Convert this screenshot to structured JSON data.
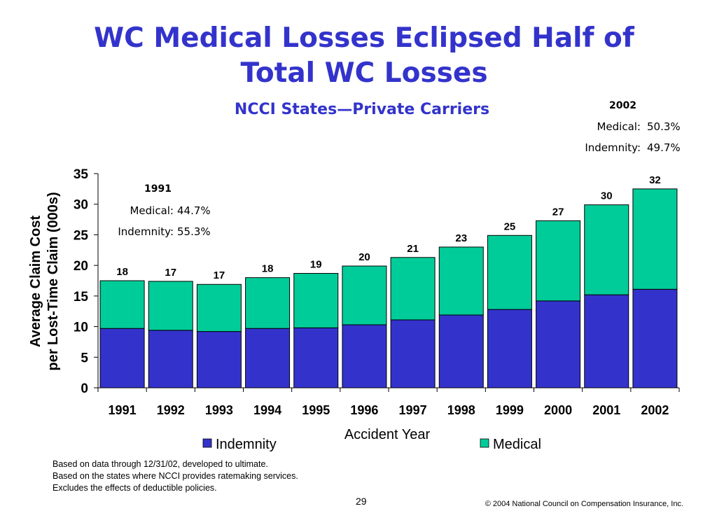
{
  "slide": {
    "title_line1": "WC Medical Losses Eclipsed Half of",
    "title_line2": "Total WC Losses",
    "subtitle": "NCCI States—Private Carriers",
    "page_number": "29",
    "copyright": "© 2004 National Council on Compensation Insurance, Inc.",
    "footnotes": [
      "Based on data through 12/31/02, developed to ultimate.",
      "Based on the states where NCCI provides ratemaking services.",
      "Excludes the effects of deductible policies."
    ]
  },
  "callouts": {
    "y1991": {
      "year": "1991",
      "medical_label": "Medical:",
      "medical_value": "44.7%",
      "indemnity_label": "Indemnity:",
      "indemnity_value": "55.3%"
    },
    "y2002": {
      "year": "2002",
      "medical_label": "Medical:",
      "medical_value": "50.3%",
      "indemnity_label": "Indemnity:",
      "indemnity_value": "49.7%"
    }
  },
  "chart_data": {
    "type": "bar",
    "stacked": true,
    "categories": [
      "1991",
      "1992",
      "1993",
      "1994",
      "1995",
      "1996",
      "1997",
      "1998",
      "1999",
      "2000",
      "2001",
      "2002"
    ],
    "series": [
      {
        "name": "Indemnity",
        "color": "#3333cc",
        "values": [
          9.7,
          9.4,
          9.2,
          9.7,
          9.8,
          10.3,
          11.1,
          11.9,
          12.8,
          14.2,
          15.2,
          16.1
        ]
      },
      {
        "name": "Medical",
        "color": "#00cc99",
        "values": [
          7.8,
          8.0,
          7.7,
          8.3,
          8.9,
          9.6,
          10.2,
          11.1,
          12.1,
          13.1,
          14.7,
          16.4
        ]
      }
    ],
    "total_labels": [
      "18",
      "17",
      "17",
      "18",
      "19",
      "20",
      "21",
      "23",
      "25",
      "27",
      "30",
      "32"
    ],
    "ylabel_line1": "Average Claim Cost",
    "ylabel_line2": "per Lost-Time Claim (000s)",
    "xlabel": "Accident Year",
    "ylim": [
      0,
      35
    ],
    "yticks": [
      0,
      5,
      10,
      15,
      20,
      25,
      30,
      35
    ],
    "grid": false,
    "legend_position": "bottom"
  }
}
